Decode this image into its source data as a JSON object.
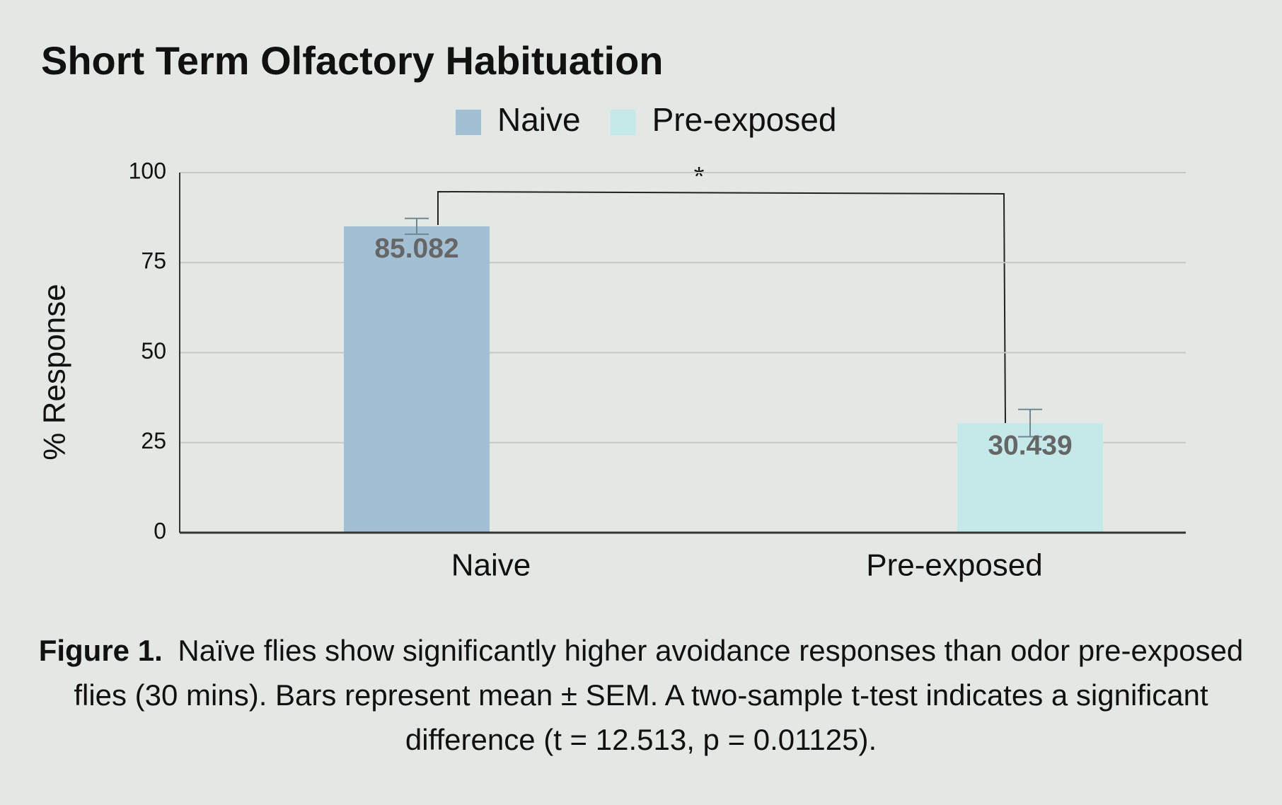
{
  "chart_data": {
    "type": "bar",
    "title": "Short Term Olfactory Habituation",
    "y_label": "% Response",
    "categories": [
      "Naive",
      "Pre-exposed"
    ],
    "series": [
      {
        "name": "Naive",
        "color": "#a3bfd3",
        "values": [
          85.082,
          null
        ],
        "errors": [
          2.2,
          null
        ]
      },
      {
        "name": "Pre-exposed",
        "color": "#c5e8e8",
        "values": [
          null,
          30.439
        ],
        "errors": [
          null,
          3.8
        ]
      }
    ],
    "ylim": [
      0,
      100
    ],
    "yticks": [
      0,
      25,
      50,
      75,
      100
    ],
    "grid": true,
    "legend": "top",
    "annotation": "*",
    "caption_label": "Figure 1.",
    "caption": "Naïve flies show significantly higher avoidance responses than odor pre-exposed flies (30 mins). Bars represent mean ± SEM. A two-sample t-test indicates a significant difference (t = 12.513, p = 0.01125)."
  }
}
